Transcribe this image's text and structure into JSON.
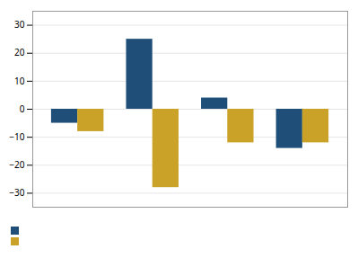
{
  "chart_data": {
    "type": "bar",
    "categories": [
      null,
      null,
      null,
      null
    ],
    "series": [
      {
        "color": "#1f4e79",
        "values": [
          -5,
          25,
          4,
          -14
        ]
      },
      {
        "color": "#c9a227",
        "values": [
          -8,
          -28,
          -12,
          -12
        ]
      }
    ],
    "ylim": [
      -35,
      35
    ],
    "yticks": [
      -30,
      -20,
      -10,
      0,
      10,
      20,
      30
    ],
    "grid": true,
    "legend": "lower left"
  }
}
